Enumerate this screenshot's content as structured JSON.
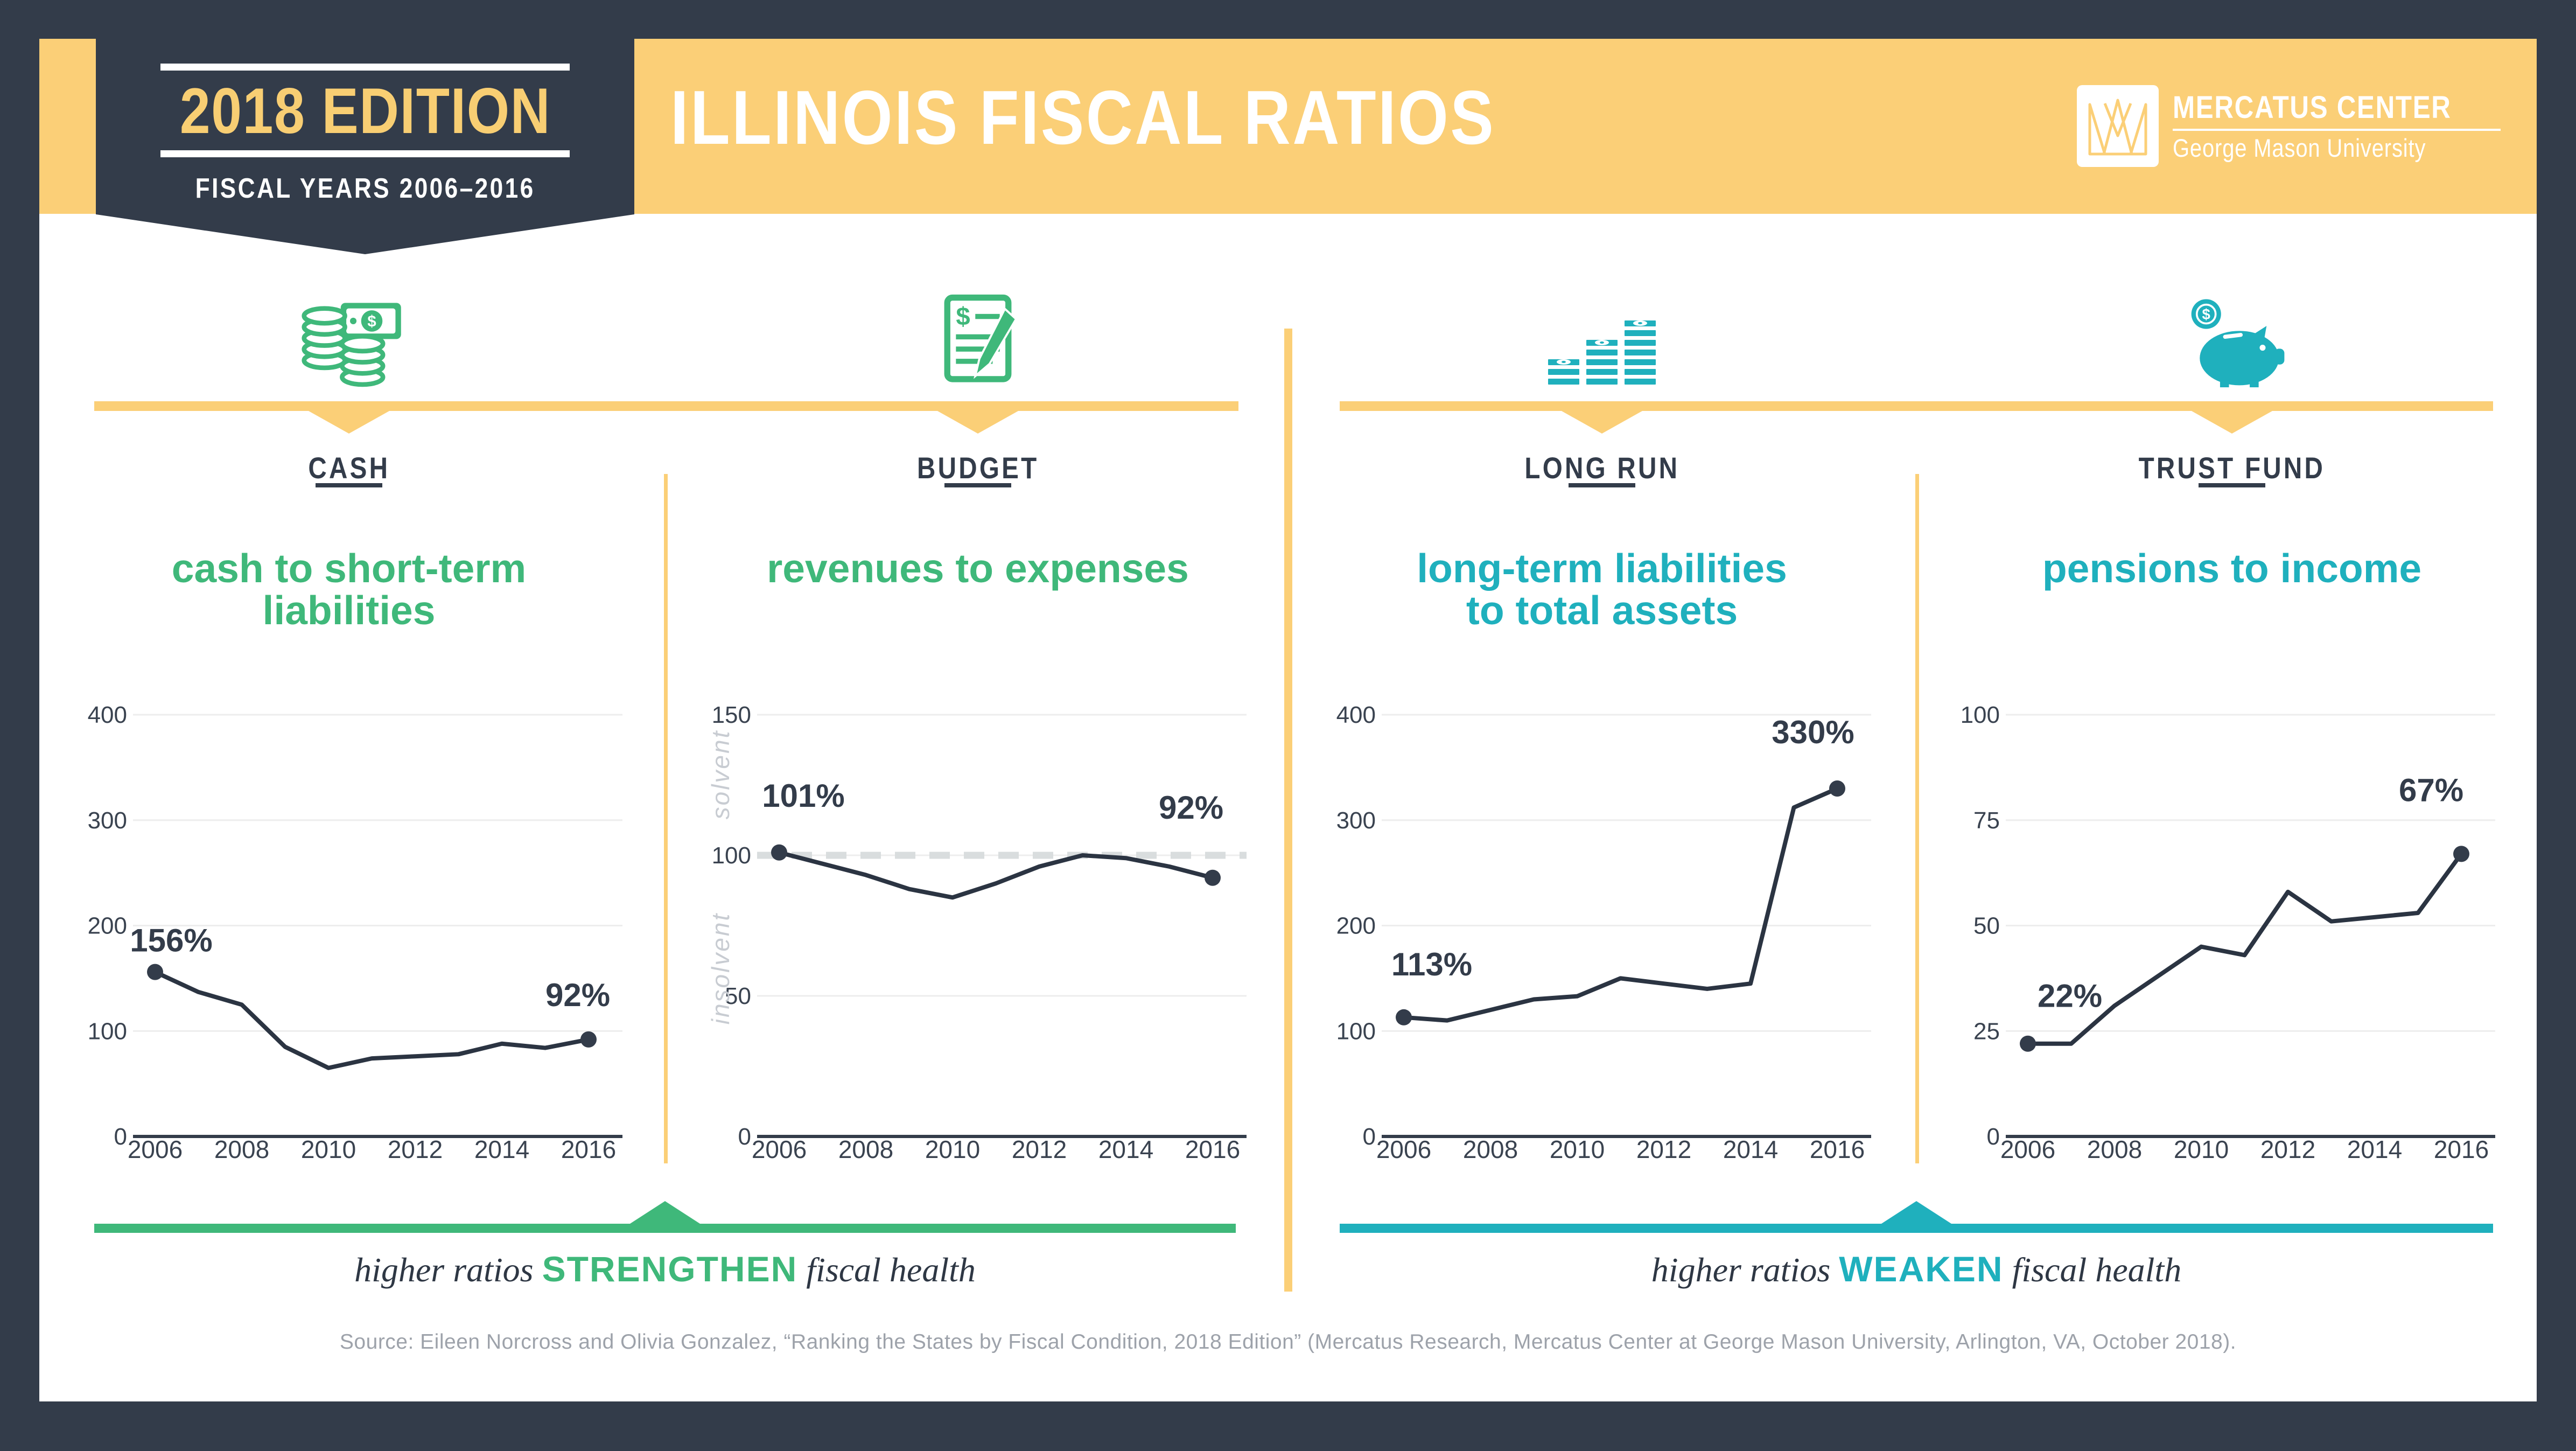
{
  "header": {
    "badge": {
      "edition": "2018 EDITION",
      "fiscal_years": "FISCAL YEARS 2006–2016"
    },
    "title": "ILLINOIS FISCAL RATIOS",
    "logo": {
      "name": "MERCATUS CENTER",
      "sub": "George Mason University"
    }
  },
  "colors": {
    "navy": "#333C4A",
    "yellow": "#FBCF77",
    "green": "#3FB87A",
    "teal": "#1FB0BD",
    "grid": "#EDEDED",
    "line": "#2B3442",
    "dashed_threshold": "#D9DDDE",
    "muted_text": "#9DA2AA",
    "annotation_gray": "#C8CCD2"
  },
  "sections": [
    {
      "id": "cash",
      "label": "CASH",
      "icon": "coins-and-bill-icon",
      "theme": "green",
      "subtitle_lines": [
        "cash to short-term",
        "liabilities"
      ]
    },
    {
      "id": "budget",
      "label": "BUDGET",
      "icon": "budget-document-icon",
      "theme": "green",
      "subtitle_lines": [
        "revenues to expenses"
      ]
    },
    {
      "id": "longrun",
      "label": "LONG RUN",
      "icon": "money-stacks-icon",
      "theme": "teal",
      "subtitle_lines": [
        "long-term liabilities",
        "to total assets"
      ]
    },
    {
      "id": "trust",
      "label": "TRUST FUND",
      "icon": "piggy-bank-icon",
      "theme": "teal",
      "subtitle_lines": [
        "pensions to income"
      ]
    }
  ],
  "chart_data": [
    {
      "id": "cash",
      "type": "line",
      "title": "cash to short-term liabilities",
      "x": [
        2006,
        2007,
        2008,
        2009,
        2010,
        2011,
        2012,
        2013,
        2014,
        2015,
        2016
      ],
      "values": [
        156,
        137,
        125,
        85,
        65,
        74,
        76,
        78,
        88,
        84,
        92
      ],
      "ylim": [
        0,
        400
      ],
      "yticks": [
        0,
        100,
        200,
        300,
        400
      ],
      "xticks": [
        2006,
        2008,
        2010,
        2012,
        2014,
        2016
      ],
      "start_label": "156%",
      "end_label": "92%",
      "grid": true,
      "legend": "none"
    },
    {
      "id": "budget",
      "type": "line",
      "title": "revenues to expenses",
      "x": [
        2006,
        2007,
        2008,
        2009,
        2010,
        2011,
        2012,
        2013,
        2014,
        2015,
        2016
      ],
      "values": [
        101,
        97,
        93,
        88,
        85,
        90,
        96,
        100,
        99,
        96,
        92
      ],
      "ylim": [
        0,
        150
      ],
      "yticks": [
        0,
        50,
        100,
        150
      ],
      "xticks": [
        2006,
        2008,
        2010,
        2012,
        2014,
        2016
      ],
      "start_label": "101%",
      "end_label": "92%",
      "threshold": {
        "value": 100,
        "style": "dashed",
        "above_label": "solvent",
        "below_label": "insolvent"
      },
      "grid": true,
      "legend": "none"
    },
    {
      "id": "longrun",
      "type": "line",
      "title": "long-term liabilities to total assets",
      "x": [
        2006,
        2007,
        2008,
        2009,
        2010,
        2011,
        2012,
        2013,
        2014,
        2015,
        2016
      ],
      "values": [
        113,
        110,
        120,
        130,
        133,
        150,
        145,
        140,
        145,
        312,
        330
      ],
      "ylim": [
        0,
        400
      ],
      "yticks": [
        0,
        100,
        200,
        300,
        400
      ],
      "xticks": [
        2006,
        2008,
        2010,
        2012,
        2014,
        2016
      ],
      "start_label": "113%",
      "end_label": "330%",
      "grid": true,
      "legend": "none"
    },
    {
      "id": "trust",
      "type": "line",
      "title": "pensions to income",
      "x": [
        2006,
        2007,
        2008,
        2009,
        2010,
        2011,
        2012,
        2013,
        2014,
        2015,
        2016
      ],
      "values": [
        22,
        22,
        31,
        38,
        45,
        43,
        58,
        51,
        52,
        53,
        67
      ],
      "ylim": [
        0,
        100
      ],
      "yticks": [
        0,
        25,
        50,
        75,
        100
      ],
      "xticks": [
        2006,
        2008,
        2010,
        2012,
        2014,
        2016
      ],
      "start_label": "22%",
      "end_label": "67%",
      "grid": true,
      "legend": "none"
    }
  ],
  "taglines": {
    "left": {
      "pre": "higher ratios",
      "emphasis": "STRENGTHEN",
      "post": "fiscal health"
    },
    "right": {
      "pre": "higher ratios",
      "emphasis": "WEAKEN",
      "post": "fiscal health"
    }
  },
  "source": "Source: Eileen Norcross and Olivia Gonzalez, “Ranking the States by Fiscal Condition, 2018 Edition” (Mercatus Research, Mercatus Center at George Mason University, Arlington, VA, October 2018)."
}
